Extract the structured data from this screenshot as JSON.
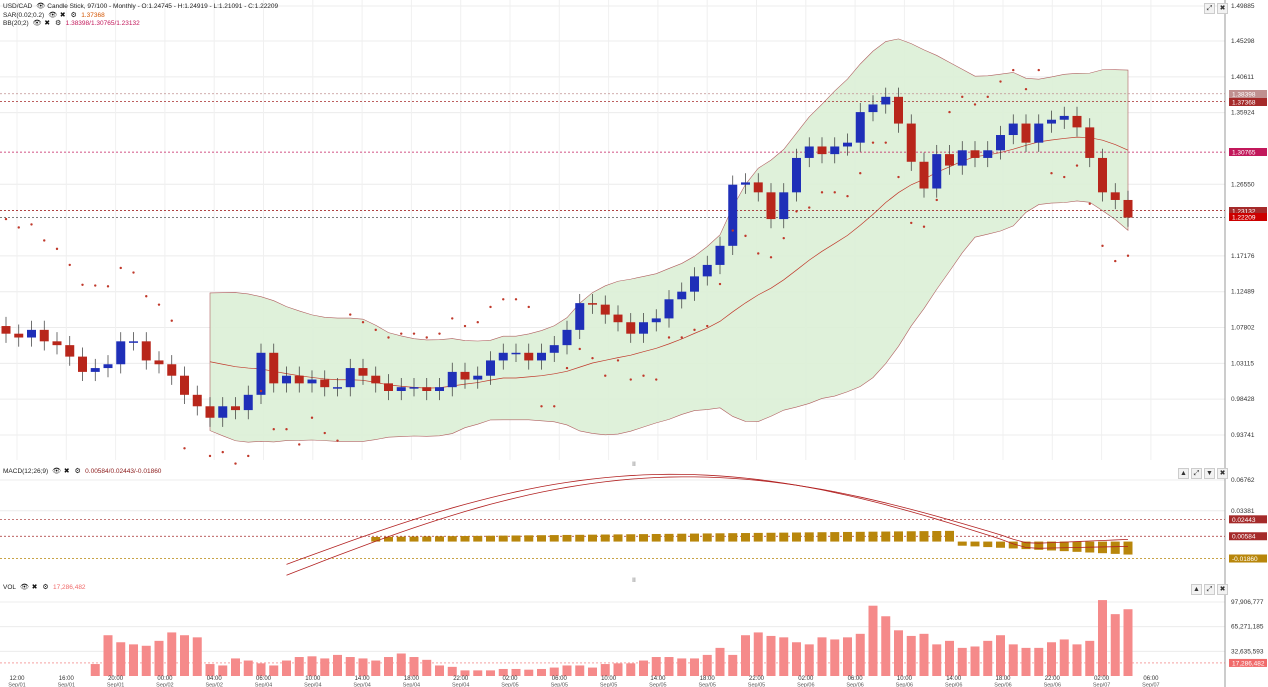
{
  "main": {
    "symbol": "USD/CAD",
    "description": "Candle Stick, 97/100 - Monthly - O:1.24745 - H:1.24919 - L:1.21091 - C:1.22209",
    "indicators": [
      {
        "label": "SAR(0.02;0.2)",
        "value": "1.37368"
      },
      {
        "label": "BB(20;2)",
        "value": "1.38398/1.30765/1.23132"
      }
    ],
    "y_ticks": [
      "1.49885",
      "1.45298",
      "1.40611",
      "1.35924",
      "1.26550",
      "1.17176",
      "1.12489",
      "1.07802",
      "1.03115",
      "0.98428",
      "0.93741"
    ],
    "badges": [
      {
        "text": "1.38398",
        "color": "#c09090",
        "y": 94
      },
      {
        "text": "1.37368",
        "color": "#a52a2a",
        "y": 102
      },
      {
        "text": "1.30765",
        "color": "#c2185b",
        "y": 152
      },
      {
        "text": "1.23132",
        "color": "#a52a2a",
        "y": 211
      },
      {
        "text": "1.22209",
        "color": "#cc0000",
        "y": 217
      }
    ]
  },
  "macd": {
    "label": "MACD(12;26;9)",
    "value": "0.00584/0.02443/-0.01860",
    "y_ticks": [
      "0.06762",
      "0.03381"
    ],
    "badges": [
      {
        "text": "0.02443",
        "color": "#a52a2a"
      },
      {
        "text": "0.00584",
        "color": "#a52a2a"
      },
      {
        "text": "-0.01860",
        "color": "#b8860b"
      }
    ]
  },
  "vol": {
    "label": "VOL",
    "value": "17,286,482",
    "y_ticks": [
      "97,906,777",
      "65,271,185",
      "32,635,593"
    ],
    "badge": "17,286,482"
  },
  "x_labels": [
    {
      "t": "12:00",
      "d": "Sep/01"
    },
    {
      "t": "16:00",
      "d": "Sep/01"
    },
    {
      "t": "20:00",
      "d": "Sep/01"
    },
    {
      "t": "00:00",
      "d": "Sep/02"
    },
    {
      "t": "04:00",
      "d": "Sep/02"
    },
    {
      "t": "06:00",
      "d": "Sep/04"
    },
    {
      "t": "10:00",
      "d": "Sep/04"
    },
    {
      "t": "14:00",
      "d": "Sep/04"
    },
    {
      "t": "18:00",
      "d": "Sep/04"
    },
    {
      "t": "22:00",
      "d": "Sep/04"
    },
    {
      "t": "02:00",
      "d": "Sep/05"
    },
    {
      "t": "06:00",
      "d": "Sep/05"
    },
    {
      "t": "10:00",
      "d": "Sep/05"
    },
    {
      "t": "14:00",
      "d": "Sep/05"
    },
    {
      "t": "18:00",
      "d": "Sep/05"
    },
    {
      "t": "22:00",
      "d": "Sep/05"
    },
    {
      "t": "02:00",
      "d": "Sep/06"
    },
    {
      "t": "06:00",
      "d": "Sep/06"
    },
    {
      "t": "10:00",
      "d": "Sep/06"
    },
    {
      "t": "14:00",
      "d": "Sep/06"
    },
    {
      "t": "18:00",
      "d": "Sep/06"
    },
    {
      "t": "22:00",
      "d": "Sep/06"
    },
    {
      "t": "02:00",
      "d": "Sep/07"
    },
    {
      "t": "06:00",
      "d": "Sep/07"
    }
  ],
  "colors": {
    "up": "#1f2fb8",
    "down": "#b8261b",
    "sar": "#c0392b",
    "band": "#dcefd6",
    "volbar": "#f58a8a",
    "macdbar": "#b8860b"
  },
  "icons": [
    "visibility-icon",
    "close-icon",
    "gear-icon",
    "maximize-icon",
    "restore-icon",
    "close-icon"
  ]
}
